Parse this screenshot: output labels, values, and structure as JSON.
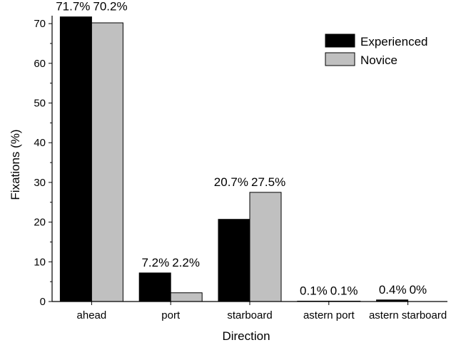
{
  "chart_data": {
    "type": "bar",
    "title": "",
    "xlabel": "Direction",
    "ylabel": "Fixations (%)",
    "ylim": [
      0,
      72
    ],
    "yticks": [
      0,
      10,
      20,
      30,
      40,
      50,
      60,
      70
    ],
    "categories": [
      "ahead",
      "port",
      "starboard",
      "astern port",
      "astern starboard"
    ],
    "series": [
      {
        "name": "Experienced",
        "color": "#000000",
        "values": [
          71.7,
          7.2,
          20.7,
          0.1,
          0.4
        ]
      },
      {
        "name": "Novice",
        "color": "#c0c0c0",
        "values": [
          70.2,
          2.2,
          27.5,
          0.1,
          0
        ]
      }
    ],
    "data_labels": [
      [
        "71.7%",
        "70.2%"
      ],
      [
        "7.2%",
        "2.2%"
      ],
      [
        "20.7%",
        "27.5%"
      ],
      [
        "0.1%",
        "0.1%"
      ],
      [
        "0.4%",
        "0%"
      ]
    ],
    "legend_position": "top-right",
    "grid": false
  }
}
